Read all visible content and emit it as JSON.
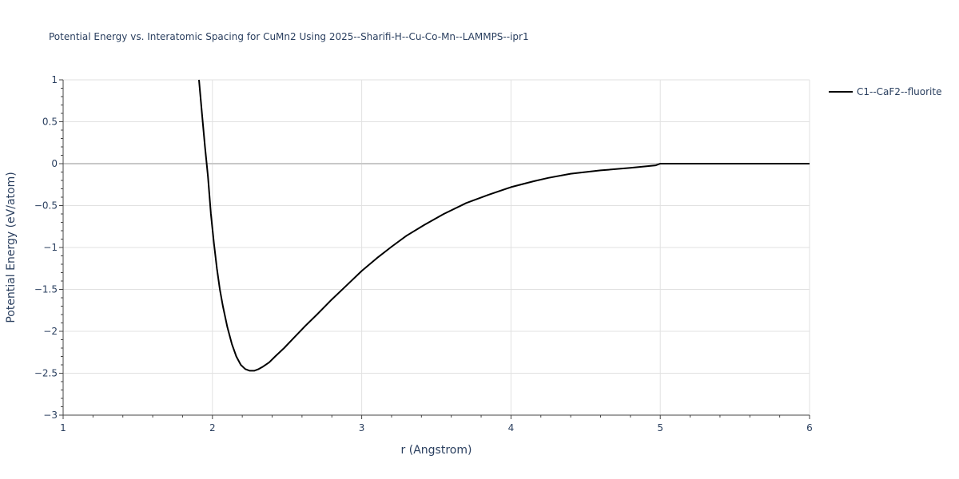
{
  "chart_data": {
    "type": "line",
    "title": "Potential Energy vs. Interatomic Spacing for CuMn2 Using 2025--Sharifi-H--Cu-Co-Mn--LAMMPS--ipr1",
    "xlabel": "r (Angstrom)",
    "ylabel": "Potential Energy (eV/atom)",
    "xlim": [
      1,
      6
    ],
    "ylim": [
      -3,
      1
    ],
    "x_ticks": [
      1,
      2,
      3,
      4,
      5,
      6
    ],
    "x_tick_labels": [
      "1",
      "2",
      "3",
      "4",
      "5",
      "6"
    ],
    "y_ticks": [
      1,
      0.5,
      0,
      -0.5,
      -1,
      -1.5,
      -2,
      -2.5,
      -3
    ],
    "y_tick_labels": [
      "1",
      "0.5",
      "0",
      "−0.5",
      "−1",
      "−1.5",
      "−2",
      "−2.5",
      "−3"
    ],
    "grid": true,
    "legend_position": "top-right",
    "series": [
      {
        "name": "C1--CaF2--fluorite",
        "color": "#000000",
        "x": [
          1.91,
          1.93,
          1.95,
          1.97,
          1.99,
          2.01,
          2.03,
          2.05,
          2.07,
          2.1,
          2.13,
          2.16,
          2.19,
          2.22,
          2.25,
          2.28,
          2.31,
          2.34,
          2.38,
          2.42,
          2.48,
          2.55,
          2.62,
          2.7,
          2.8,
          2.9,
          3.0,
          3.1,
          3.2,
          3.3,
          3.42,
          3.55,
          3.7,
          3.85,
          4.0,
          4.15,
          4.25,
          4.4,
          4.6,
          4.8,
          4.97,
          5.0,
          5.2,
          5.5,
          6.0
        ],
        "y": [
          1.0,
          0.6,
          0.2,
          -0.15,
          -0.6,
          -0.95,
          -1.25,
          -1.5,
          -1.7,
          -1.95,
          -2.15,
          -2.3,
          -2.4,
          -2.45,
          -2.47,
          -2.47,
          -2.45,
          -2.42,
          -2.37,
          -2.3,
          -2.2,
          -2.07,
          -1.94,
          -1.8,
          -1.62,
          -1.45,
          -1.28,
          -1.13,
          -0.99,
          -0.86,
          -0.73,
          -0.6,
          -0.47,
          -0.37,
          -0.28,
          -0.21,
          -0.17,
          -0.12,
          -0.08,
          -0.05,
          -0.02,
          0.0,
          0.0,
          0.0,
          0.0
        ]
      }
    ]
  }
}
